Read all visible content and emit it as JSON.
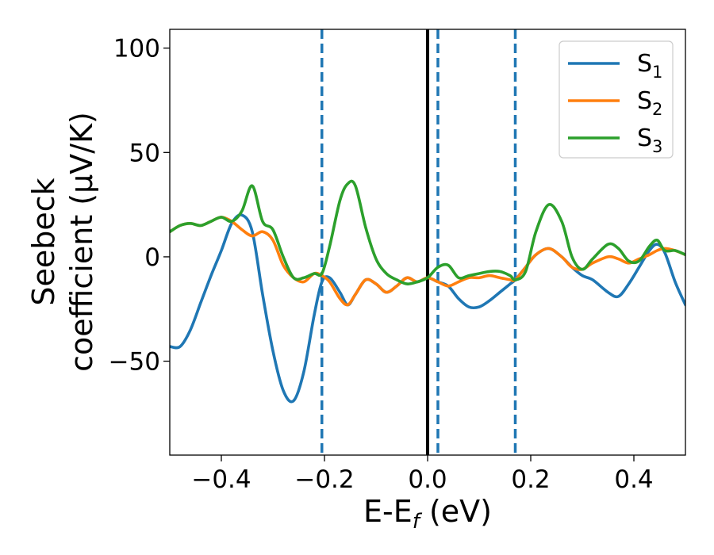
{
  "chart_data": {
    "type": "line",
    "xlabel": "E-E",
    "xlabel_sub": "f",
    "xlabel_unit": " (eV)",
    "ylabel_line1": "Seebeck",
    "ylabel_line2": "coefficient  (μV/K)",
    "xlim": [
      -0.5,
      0.5
    ],
    "ylim": [
      -95,
      109
    ],
    "xticks": [
      -0.4,
      -0.2,
      0.0,
      0.2,
      0.4
    ],
    "xtick_labels": [
      "−0.4",
      "−0.2",
      "0.0",
      "0.2",
      "0.4"
    ],
    "yticks": [
      -50,
      0,
      50,
      100
    ],
    "ytick_labels": [
      "−50",
      "0",
      "50",
      "100"
    ],
    "grid": false,
    "legend_position": "top-right",
    "vertical_lines": [
      {
        "x": 0.0,
        "style": "solid",
        "color": "#000000"
      },
      {
        "x": -0.205,
        "style": "dashed",
        "color": "#1f77b4"
      },
      {
        "x": 0.02,
        "style": "dashed",
        "color": "#1f77b4"
      },
      {
        "x": 0.17,
        "style": "dashed",
        "color": "#1f77b4"
      }
    ],
    "series": [
      {
        "name": "S",
        "sub": "1",
        "color": "#1f77b4",
        "x": [
          -0.5,
          -0.48,
          -0.46,
          -0.44,
          -0.42,
          -0.4,
          -0.38,
          -0.36,
          -0.34,
          -0.32,
          -0.3,
          -0.28,
          -0.26,
          -0.24,
          -0.22,
          -0.205,
          -0.19,
          -0.17,
          -0.155,
          -0.14,
          -0.12,
          -0.1,
          -0.08,
          -0.06,
          -0.04,
          -0.02,
          0.0,
          0.02,
          0.04,
          0.06,
          0.08,
          0.1,
          0.12,
          0.14,
          0.16,
          0.17,
          0.19,
          0.21,
          0.235,
          0.26,
          0.28,
          0.3,
          0.32,
          0.35,
          0.37,
          0.39,
          0.41,
          0.43,
          0.445,
          0.46,
          0.48,
          0.5
        ],
        "y": [
          -43,
          -43,
          -35,
          -22,
          -9,
          3,
          16,
          20,
          12,
          -18,
          -45,
          -64,
          -69,
          -55,
          -28,
          -12,
          -10,
          -17,
          -23,
          -18,
          -11,
          -13,
          -17,
          -14,
          -10,
          -12,
          -10,
          -12,
          -14,
          -20,
          -24,
          -24,
          -21,
          -17,
          -13,
          -11,
          -5,
          1,
          4,
          0,
          -5,
          -9,
          -11,
          -17,
          -19,
          -13,
          -5,
          3,
          6,
          2,
          -12,
          -23
        ]
      },
      {
        "name": "S",
        "sub": "2",
        "color": "#ff7f0e",
        "x": [
          -0.5,
          -0.48,
          -0.46,
          -0.44,
          -0.42,
          -0.4,
          -0.38,
          -0.36,
          -0.34,
          -0.32,
          -0.3,
          -0.28,
          -0.26,
          -0.24,
          -0.22,
          -0.205,
          -0.19,
          -0.17,
          -0.155,
          -0.14,
          -0.12,
          -0.1,
          -0.08,
          -0.06,
          -0.04,
          -0.02,
          0.0,
          0.02,
          0.04,
          0.06,
          0.08,
          0.1,
          0.12,
          0.14,
          0.16,
          0.17,
          0.19,
          0.21,
          0.235,
          0.26,
          0.28,
          0.3,
          0.32,
          0.35,
          0.37,
          0.39,
          0.41,
          0.43,
          0.445,
          0.46,
          0.48,
          0.5
        ],
        "y": [
          12,
          15,
          16,
          15,
          17,
          19,
          17,
          13,
          10,
          12,
          8,
          -4,
          -10,
          -12,
          -8,
          -9,
          -12,
          -20,
          -23,
          -18,
          -11,
          -13,
          -17,
          -14,
          -10,
          -12,
          -10,
          -12,
          -14,
          -12,
          -10,
          -10,
          -9,
          -10,
          -11,
          -11,
          -5,
          1,
          4,
          0,
          -5,
          -6,
          -3,
          0,
          -1,
          -3,
          -1,
          1,
          3,
          4,
          3,
          1
        ]
      },
      {
        "name": "S",
        "sub": "3",
        "color": "#2ca02c",
        "x": [
          -0.5,
          -0.48,
          -0.46,
          -0.44,
          -0.42,
          -0.4,
          -0.38,
          -0.36,
          -0.34,
          -0.32,
          -0.3,
          -0.28,
          -0.26,
          -0.24,
          -0.22,
          -0.205,
          -0.19,
          -0.17,
          -0.155,
          -0.14,
          -0.12,
          -0.1,
          -0.08,
          -0.06,
          -0.04,
          -0.02,
          0.0,
          0.02,
          0.04,
          0.06,
          0.08,
          0.1,
          0.12,
          0.14,
          0.16,
          0.17,
          0.19,
          0.21,
          0.235,
          0.26,
          0.28,
          0.3,
          0.32,
          0.35,
          0.37,
          0.39,
          0.41,
          0.43,
          0.445,
          0.46,
          0.48,
          0.5
        ],
        "y": [
          12,
          15,
          16,
          15,
          17,
          19,
          17,
          22,
          34,
          17,
          13,
          0,
          -10,
          -10,
          -8,
          -8,
          5,
          27,
          35,
          34,
          14,
          -1,
          -8,
          -11,
          -13,
          -12,
          -10,
          -5,
          -4,
          -10,
          -9,
          -8,
          -7,
          -7,
          -9,
          -11,
          -7,
          12,
          25,
          17,
          0,
          -6,
          -1,
          6,
          4,
          -2,
          -2,
          5,
          8,
          3,
          3,
          1
        ]
      }
    ]
  }
}
